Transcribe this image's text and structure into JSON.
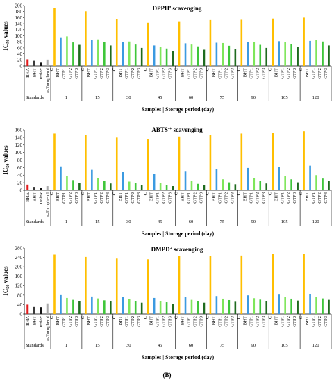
{
  "figure_label": "(B)",
  "colors": {
    "BHA": "#e31a1c",
    "BHT_std": "#3a3a3a",
    "Trolox": "#141414",
    "alpha_tocopherol": "#a8a8a8",
    "C": "#ffbf00",
    "BHT": "#3b9ae1",
    "GTP1": "#7ee65a",
    "GTP2": "#3fc63a",
    "GTP3": "#1f6b1f"
  },
  "chart_data": [
    {
      "type": "bar",
      "title": "DPPH• scavenging",
      "ylabel": "IC50 values",
      "xlabel": "Samples | Storage period (day)",
      "ylim": [
        0,
        200
      ],
      "yticks": [
        0,
        20,
        40,
        60,
        80,
        100,
        120,
        140,
        160,
        180,
        200
      ],
      "standards_label": "Standards",
      "standards": {
        "categories": [
          "BHA",
          "BHT",
          "Trolox",
          "α-Tocopherol"
        ],
        "values": [
          22,
          17,
          13,
          21
        ]
      },
      "group_categories": [
        "C",
        "BHT",
        "GTP1",
        "GTP2",
        "GTP3"
      ],
      "groups": [
        {
          "label": "1",
          "values": [
            193,
            95,
            98,
            78,
            70
          ]
        },
        {
          "label": "15",
          "values": [
            181,
            87,
            88,
            80,
            68
          ]
        },
        {
          "label": "30",
          "values": [
            155,
            80,
            81,
            71,
            60
          ]
        },
        {
          "label": "45",
          "values": [
            143,
            68,
            63,
            58,
            50
          ]
        },
        {
          "label": "60",
          "values": [
            148,
            75,
            71,
            65,
            54
          ]
        },
        {
          "label": "75",
          "values": [
            152,
            77,
            76,
            67,
            57
          ]
        },
        {
          "label": "90",
          "values": [
            153,
            79,
            79,
            70,
            60
          ]
        },
        {
          "label": "105",
          "values": [
            157,
            82,
            79,
            72,
            63
          ]
        },
        {
          "label": "120",
          "values": [
            160,
            83,
            87,
            81,
            68
          ]
        }
      ]
    },
    {
      "type": "bar",
      "title": "ABTS•+ scavenging",
      "ylabel": "IC50 values",
      "xlabel": "Samples | Storage period (day)",
      "ylim": [
        0,
        160
      ],
      "yticks": [
        0,
        20,
        40,
        60,
        80,
        100,
        120,
        140,
        160
      ],
      "standards_label": "Standards",
      "standards": {
        "categories": [
          "BHA",
          "BHT",
          "Trolox",
          "α-Tocopherol"
        ],
        "values": [
          15,
          9,
          7,
          11
        ]
      },
      "group_categories": [
        "C",
        "BHT",
        "GTP1",
        "GTP2",
        "GTP3"
      ],
      "groups": [
        {
          "label": "1",
          "values": [
            150,
            63,
            38,
            27,
            20
          ]
        },
        {
          "label": "15",
          "values": [
            146,
            54,
            32,
            24,
            18
          ]
        },
        {
          "label": "30",
          "values": [
            141,
            48,
            23,
            19,
            14
          ]
        },
        {
          "label": "45",
          "values": [
            136,
            44,
            19,
            14,
            11
          ]
        },
        {
          "label": "60",
          "values": [
            142,
            51,
            25,
            17,
            14
          ]
        },
        {
          "label": "75",
          "values": [
            147,
            56,
            29,
            21,
            16
          ]
        },
        {
          "label": "90",
          "values": [
            150,
            59,
            33,
            25,
            18
          ]
        },
        {
          "label": "105",
          "values": [
            152,
            62,
            37,
            29,
            21
          ]
        },
        {
          "label": "120",
          "values": [
            156,
            65,
            40,
            31,
            24
          ]
        }
      ]
    },
    {
      "type": "bar",
      "title": "DMPD+ scavenging",
      "ylabel": "IC50 values",
      "xlabel": "Samples | Storage period (day)",
      "ylim": [
        0,
        280
      ],
      "yticks": [
        0,
        40,
        80,
        120,
        160,
        200,
        240,
        280
      ],
      "standards_label": "Standards",
      "standards": {
        "categories": [
          "BHA",
          "BHT",
          "Trolox",
          "α-Tocopherol"
        ],
        "values": [
          40,
          30,
          29,
          45
        ]
      },
      "group_categories": [
        "C",
        "BHT",
        "GTP1",
        "GTP2",
        "GTP3"
      ],
      "groups": [
        {
          "label": "1",
          "values": [
            252,
            80,
            68,
            60,
            55
          ]
        },
        {
          "label": "15",
          "values": [
            242,
            74,
            66,
            58,
            53
          ]
        },
        {
          "label": "30",
          "values": [
            235,
            72,
            62,
            55,
            48
          ]
        },
        {
          "label": "45",
          "values": [
            232,
            68,
            56,
            50,
            44
          ]
        },
        {
          "label": "60",
          "values": [
            245,
            72,
            60,
            54,
            48
          ]
        },
        {
          "label": "75",
          "values": [
            246,
            76,
            65,
            59,
            52
          ]
        },
        {
          "label": "90",
          "values": [
            248,
            79,
            67,
            61,
            54
          ]
        },
        {
          "label": "105",
          "values": [
            254,
            82,
            71,
            65,
            57
          ]
        },
        {
          "label": "120",
          "values": [
            255,
            83,
            72,
            66,
            60
          ]
        }
      ]
    }
  ]
}
